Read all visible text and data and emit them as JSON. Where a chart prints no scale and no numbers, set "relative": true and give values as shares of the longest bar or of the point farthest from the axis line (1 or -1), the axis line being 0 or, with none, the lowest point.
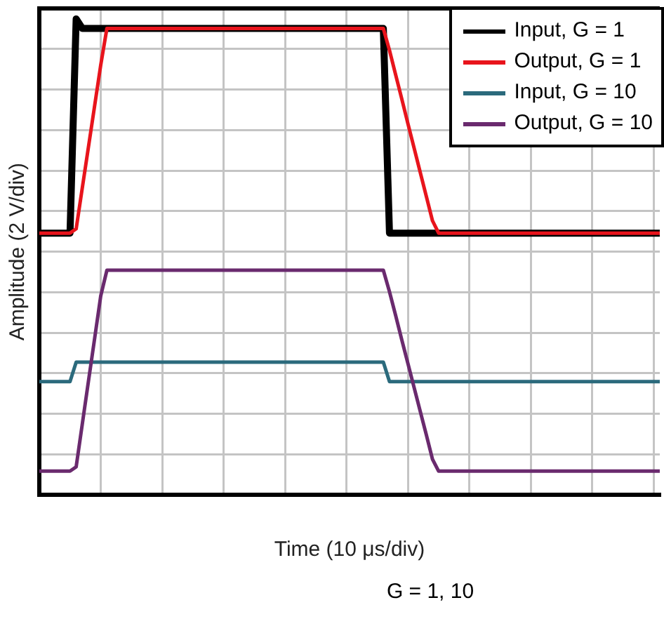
{
  "chart_data": {
    "type": "line",
    "relative": true,
    "xlabel": "Time (10 μs/div)",
    "ylabel": "Amplitude (2 V/div)",
    "annotations": [
      "G = 1, 10"
    ],
    "grid": true,
    "legend": "top right",
    "categories": [
      null,
      null,
      null,
      null,
      null,
      null,
      null,
      null,
      null,
      null,
      null,
      null,
      null,
      null,
      null,
      null,
      null,
      null,
      null,
      null,
      null,
      null,
      null,
      null,
      null,
      null,
      null,
      null,
      null,
      null,
      null,
      null,
      null,
      null,
      null,
      null,
      null,
      null,
      null,
      null,
      null,
      null,
      null,
      null,
      null,
      null,
      null,
      null,
      null,
      null,
      null,
      null,
      null,
      null,
      null,
      null,
      null,
      null,
      null,
      null,
      null,
      null,
      null,
      null,
      null,
      null,
      null,
      null,
      null,
      null,
      null,
      null,
      null,
      null,
      null,
      null,
      null,
      null,
      null,
      null,
      null,
      null,
      null,
      null,
      null,
      null,
      null,
      null,
      null,
      null,
      null,
      null,
      null,
      null,
      null,
      null,
      null,
      null,
      null,
      null,
      null,
      null
    ],
    "series": [
      {
        "name": "Input, G = 1",
        "color": "#000000",
        "values": [
          0.55,
          0.55,
          0.55,
          0.55,
          0.55,
          0.55,
          1,
          0.98,
          0.98,
          0.98,
          0.98,
          0.98,
          0.98,
          0.98,
          0.98,
          0.98,
          0.98,
          0.98,
          0.98,
          0.98,
          0.98,
          0.98,
          0.98,
          0.98,
          0.98,
          0.98,
          0.98,
          0.98,
          0.98,
          0.98,
          0.98,
          0.98,
          0.98,
          0.98,
          0.98,
          0.98,
          0.98,
          0.98,
          0.98,
          0.98,
          0.98,
          0.98,
          0.98,
          0.98,
          0.98,
          0.98,
          0.98,
          0.98,
          0.98,
          0.98,
          0.98,
          0.98,
          0.98,
          0.98,
          0.98,
          0.98,
          0.98,
          0.55,
          0.55,
          0.55,
          0.55,
          0.55,
          0.55,
          0.55,
          0.55,
          0.55,
          0.55,
          0.55,
          0.55,
          0.55,
          0.55,
          0.55,
          0.55,
          0.55,
          0.55,
          0.55,
          0.55,
          0.55,
          0.55,
          0.55,
          0.55,
          0.55,
          0.55,
          0.55,
          0.55,
          0.55,
          0.55,
          0.55,
          0.55,
          0.55,
          0.55,
          0.55,
          0.55,
          0.55,
          0.55,
          0.55,
          0.55,
          0.55,
          0.55,
          0.55,
          0.55,
          0.55
        ]
      },
      {
        "name": "Output, G = 1",
        "color": "#e8141c",
        "values": [
          0.55,
          0.55,
          0.55,
          0.55,
          0.55,
          0.55,
          0.559,
          0.645,
          0.731,
          0.817,
          0.903,
          0.98,
          0.98,
          0.98,
          0.98,
          0.98,
          0.98,
          0.98,
          0.98,
          0.98,
          0.98,
          0.98,
          0.98,
          0.98,
          0.98,
          0.98,
          0.98,
          0.98,
          0.98,
          0.98,
          0.98,
          0.98,
          0.98,
          0.98,
          0.98,
          0.98,
          0.98,
          0.98,
          0.98,
          0.98,
          0.98,
          0.98,
          0.98,
          0.98,
          0.98,
          0.98,
          0.98,
          0.98,
          0.98,
          0.98,
          0.98,
          0.98,
          0.98,
          0.98,
          0.98,
          0.98,
          0.98,
          0.934,
          0.883,
          0.832,
          0.78,
          0.729,
          0.678,
          0.627,
          0.576,
          0.55,
          0.55,
          0.55,
          0.55,
          0.55,
          0.55,
          0.55,
          0.55,
          0.55,
          0.55,
          0.55,
          0.55,
          0.55,
          0.55,
          0.55,
          0.55,
          0.55,
          0.55,
          0.55,
          0.55,
          0.55,
          0.55,
          0.55,
          0.55,
          0.55,
          0.55,
          0.55,
          0.55,
          0.55,
          0.55,
          0.55,
          0.55,
          0.55,
          0.55,
          0.55,
          0.55,
          0.55
        ]
      },
      {
        "name": "Input, G = 10",
        "color": "#2b6a7c",
        "values": [
          0.238,
          0.238,
          0.238,
          0.238,
          0.238,
          0.238,
          0.279,
          0.279,
          0.279,
          0.279,
          0.279,
          0.279,
          0.279,
          0.279,
          0.279,
          0.279,
          0.279,
          0.279,
          0.279,
          0.279,
          0.279,
          0.279,
          0.279,
          0.279,
          0.279,
          0.279,
          0.279,
          0.279,
          0.279,
          0.279,
          0.279,
          0.279,
          0.279,
          0.279,
          0.279,
          0.279,
          0.279,
          0.279,
          0.279,
          0.279,
          0.279,
          0.279,
          0.279,
          0.279,
          0.279,
          0.279,
          0.279,
          0.279,
          0.279,
          0.279,
          0.279,
          0.279,
          0.279,
          0.279,
          0.279,
          0.279,
          0.279,
          0.238,
          0.238,
          0.238,
          0.238,
          0.238,
          0.238,
          0.238,
          0.238,
          0.238,
          0.238,
          0.238,
          0.238,
          0.238,
          0.238,
          0.238,
          0.238,
          0.238,
          0.238,
          0.238,
          0.238,
          0.238,
          0.238,
          0.238,
          0.238,
          0.238,
          0.238,
          0.238,
          0.238,
          0.238,
          0.238,
          0.238,
          0.238,
          0.238,
          0.238,
          0.238,
          0.238,
          0.238,
          0.238,
          0.238,
          0.238,
          0.238,
          0.238,
          0.238,
          0.238,
          0.238
        ]
      },
      {
        "name": "Output, G = 10",
        "color": "#6a2a6e",
        "values": [
          0.05,
          0.05,
          0.05,
          0.05,
          0.05,
          0.05,
          0.059,
          0.149,
          0.239,
          0.328,
          0.418,
          0.472,
          0.472,
          0.472,
          0.472,
          0.472,
          0.472,
          0.472,
          0.472,
          0.472,
          0.472,
          0.472,
          0.472,
          0.472,
          0.472,
          0.472,
          0.472,
          0.472,
          0.472,
          0.472,
          0.472,
          0.472,
          0.472,
          0.472,
          0.472,
          0.472,
          0.472,
          0.472,
          0.472,
          0.472,
          0.472,
          0.472,
          0.472,
          0.472,
          0.472,
          0.472,
          0.472,
          0.472,
          0.472,
          0.472,
          0.472,
          0.472,
          0.472,
          0.472,
          0.472,
          0.472,
          0.472,
          0.427,
          0.377,
          0.326,
          0.276,
          0.226,
          0.176,
          0.126,
          0.075,
          0.05,
          0.05,
          0.05,
          0.05,
          0.05,
          0.05,
          0.05,
          0.05,
          0.05,
          0.05,
          0.05,
          0.05,
          0.05,
          0.05,
          0.05,
          0.05,
          0.05,
          0.05,
          0.05,
          0.05,
          0.05,
          0.05,
          0.05,
          0.05,
          0.05,
          0.05,
          0.05,
          0.05,
          0.05,
          0.05,
          0.05,
          0.05,
          0.05,
          0.05,
          0.05,
          0.05,
          0.05
        ]
      }
    ]
  }
}
